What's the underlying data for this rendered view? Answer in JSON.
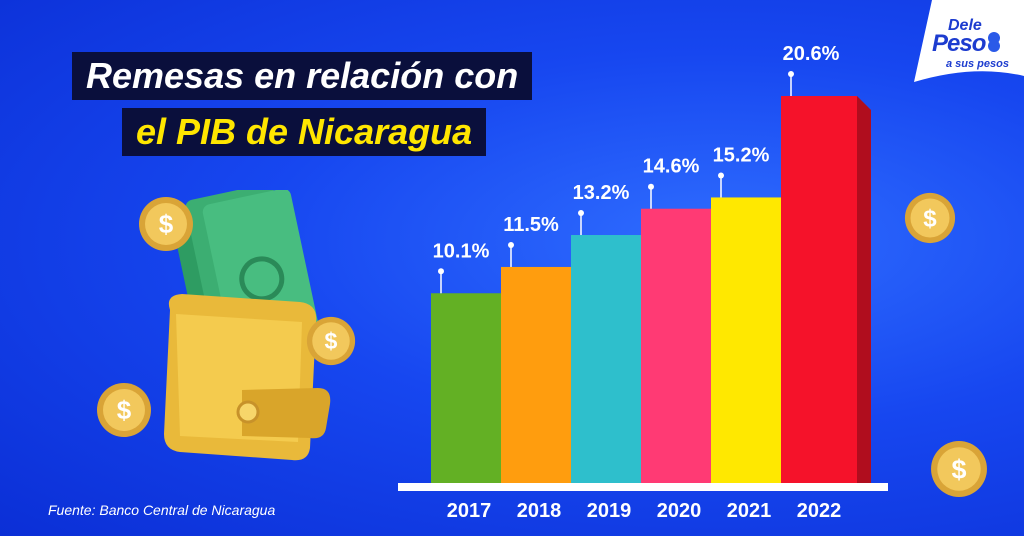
{
  "title": {
    "line1": "Remesas en relación con",
    "line2": "el PIB de Nicaragua"
  },
  "source": "Fuente: Banco Central de Nicaragua",
  "logo": {
    "line1": "Dele",
    "line2": "Peso",
    "line3": "a sus pesos"
  },
  "colors": {
    "background": "#1747f0",
    "title_bg": "#0a0f3c",
    "title_accent": "#ffe600"
  },
  "chart_data": {
    "type": "bar",
    "title": "Remesas en relación con el PIB de Nicaragua",
    "categories": [
      "2017",
      "2018",
      "2019",
      "2020",
      "2021",
      "2022"
    ],
    "values": [
      10.1,
      11.5,
      13.2,
      14.6,
      15.2,
      20.6
    ],
    "labels": [
      "10.1%",
      "11.5%",
      "13.2%",
      "14.6%",
      "15.2%",
      "20.6%"
    ],
    "colors": [
      "#63b024",
      "#ff9d0e",
      "#2ebfcc",
      "#ff3a74",
      "#ffe800",
      "#f5122a"
    ],
    "unit": "%",
    "xlabel": "",
    "ylabel": "",
    "grid": false
  },
  "decor": {
    "wallet_icon": "wallet-with-cash-icon",
    "coin_icon": "dollar-coin-icon"
  }
}
